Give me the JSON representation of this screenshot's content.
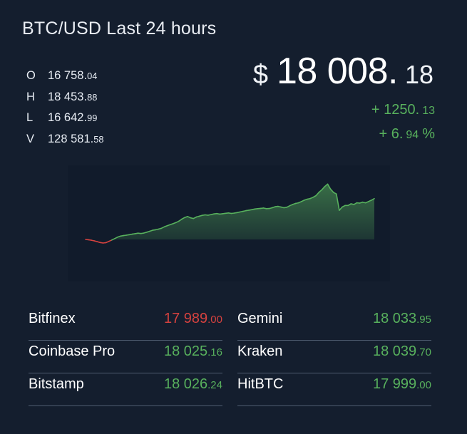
{
  "header": {
    "title": "BTC/USD Last 24 hours"
  },
  "ohlc": [
    {
      "key": "O",
      "int": "16 758.",
      "dec": "04"
    },
    {
      "key": "H",
      "int": "18 453.",
      "dec": "88"
    },
    {
      "key": "L",
      "int": "16 642.",
      "dec": "99"
    },
    {
      "key": "V",
      "int": "128 581.",
      "dec": "58"
    }
  ],
  "price": {
    "currency": "$",
    "main": "18 008.",
    "decimals": "18"
  },
  "change": {
    "absolute_main": "+ 1250.",
    "absolute_dec": "13",
    "percent_main": "+ 6.",
    "percent_dec": "94",
    "percent_sign": "%"
  },
  "exchanges": {
    "left": [
      {
        "name": "Bitfinex",
        "int": "17 989",
        "dec": ".00",
        "trend": "down"
      },
      {
        "name": "Coinbase Pro",
        "int": "18 025",
        "dec": ".16",
        "trend": "up"
      },
      {
        "name": "Bitstamp",
        "int": "18 026",
        "dec": ".24",
        "trend": "up"
      }
    ],
    "right": [
      {
        "name": "Gemini",
        "int": "18 033",
        "dec": ".95",
        "trend": "up"
      },
      {
        "name": "Kraken",
        "int": "18 039",
        "dec": ".70",
        "trend": "up"
      },
      {
        "name": "HitBTC",
        "int": "17 999",
        "dec": ".00",
        "trend": "up"
      }
    ]
  },
  "colors": {
    "background": "#141e2e",
    "up": "#58b15d",
    "down": "#d6423f"
  },
  "chart_data": {
    "type": "area",
    "title": "",
    "xlabel": "",
    "ylabel": "",
    "grid": false,
    "legend": "none",
    "baseline_value": 16758.04,
    "ylim": [
      16300,
      18700
    ],
    "x": [
      0,
      1,
      2,
      3,
      4,
      5,
      6,
      7,
      8,
      9,
      10,
      11,
      12,
      13,
      14,
      15,
      16,
      17,
      18,
      19,
      20,
      21,
      22,
      23,
      24,
      25,
      26,
      27,
      28,
      29,
      30,
      31,
      32,
      33,
      34,
      35,
      36,
      37,
      38,
      39,
      40,
      41,
      42,
      43,
      44,
      45,
      46,
      47,
      48,
      49,
      50,
      51,
      52,
      53,
      54,
      55,
      56,
      57,
      58,
      59,
      60,
      61,
      62,
      63,
      64,
      65,
      66,
      67,
      68,
      69,
      70,
      71,
      72,
      73,
      74,
      75,
      76,
      77,
      78,
      79,
      80,
      81,
      82,
      83,
      84,
      85,
      86,
      87,
      88,
      89,
      90,
      91,
      92,
      93,
      94,
      95,
      96,
      97,
      98,
      99
    ],
    "values": [
      16758,
      16750,
      16735,
      16715,
      16690,
      16665,
      16650,
      16660,
      16700,
      16740,
      16785,
      16830,
      16860,
      16875,
      16890,
      16905,
      16920,
      16935,
      16950,
      16940,
      16955,
      16980,
      17010,
      17040,
      17055,
      17075,
      17100,
      17145,
      17180,
      17210,
      17240,
      17275,
      17320,
      17380,
      17430,
      17460,
      17420,
      17400,
      17445,
      17470,
      17495,
      17510,
      17500,
      17520,
      17540,
      17550,
      17535,
      17545,
      17560,
      17570,
      17555,
      17565,
      17580,
      17600,
      17620,
      17640,
      17655,
      17670,
      17690,
      17700,
      17710,
      17720,
      17700,
      17705,
      17730,
      17760,
      17770,
      17750,
      17730,
      17745,
      17790,
      17830,
      17860,
      17880,
      17920,
      17960,
      17990,
      18010,
      18050,
      18100,
      18200,
      18280,
      18380,
      18453,
      18300,
      18200,
      18150,
      17650,
      17750,
      17800,
      17800,
      17850,
      17830,
      17880,
      17870,
      17900,
      17880,
      17920,
      17960,
      18008
    ]
  }
}
